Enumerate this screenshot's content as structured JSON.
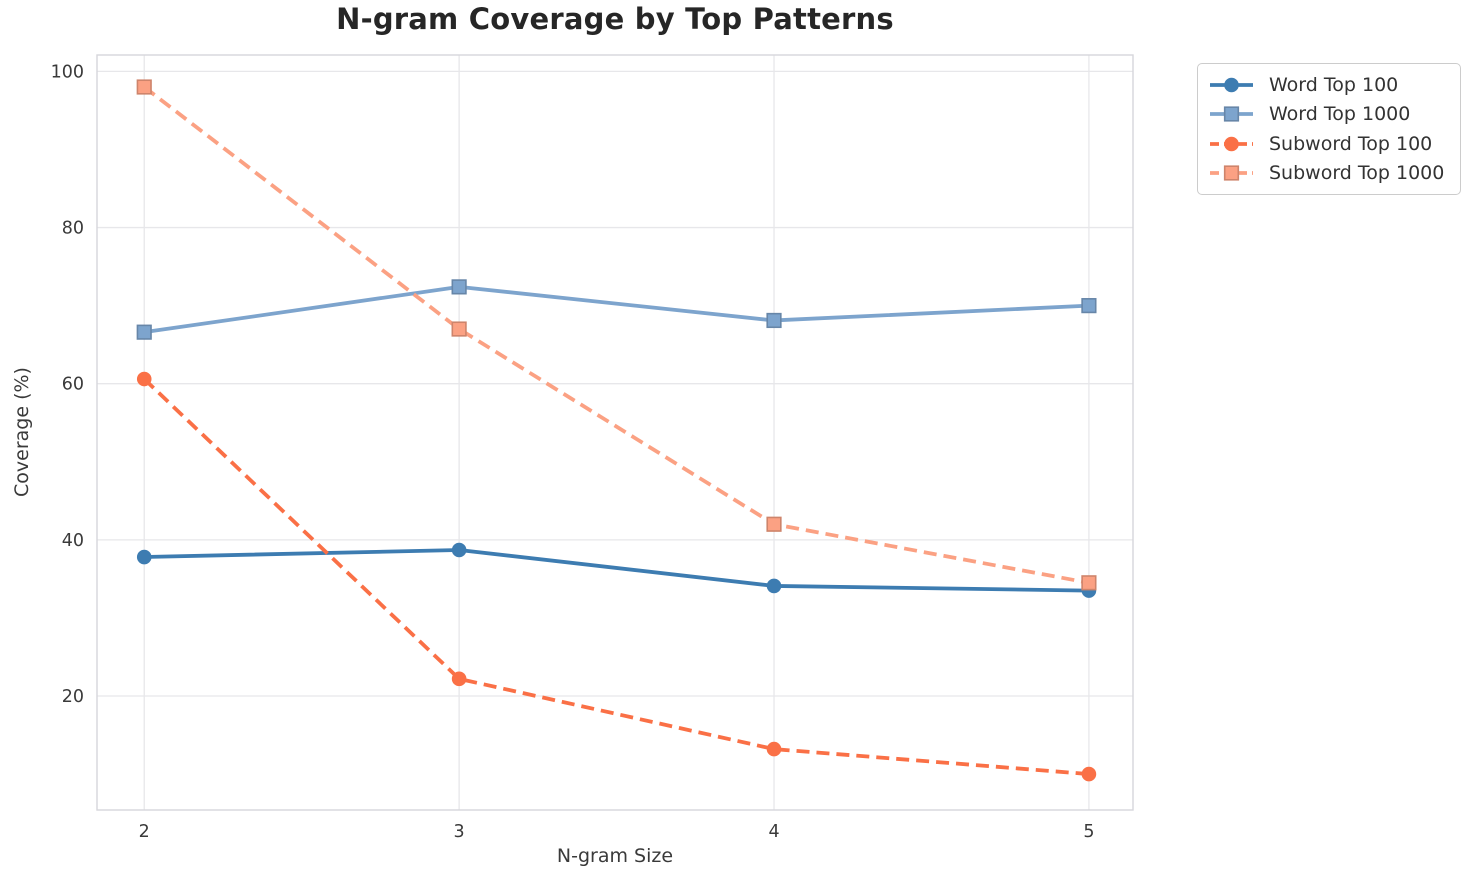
{
  "title": "N-gram Coverage by Top Patterns",
  "chart_data": {
    "type": "line",
    "title": "N-gram Coverage by Top Patterns",
    "xlabel": "N-gram Size",
    "ylabel": "Coverage (%)",
    "x": [
      2,
      3,
      4,
      5
    ],
    "xticks": [
      2,
      3,
      4,
      5
    ],
    "yticks": [
      20,
      40,
      60,
      80,
      100
    ],
    "xlim": [
      1.85,
      5.14
    ],
    "ylim": [
      5.4,
      102.1
    ],
    "grid": true,
    "legend_position": "outside-top-right",
    "series": [
      {
        "name": "Word Top 100",
        "color": "#3d7cb1",
        "marker": "circle",
        "line_style": "solid",
        "values": [
          37.8,
          38.7,
          34.1,
          33.5
        ]
      },
      {
        "name": "Word Top 1000",
        "color": "#7da4cd",
        "marker": "square",
        "line_style": "solid",
        "values": [
          66.6,
          72.4,
          68.1,
          70.0
        ]
      },
      {
        "name": "Subword Top 100",
        "color": "#fa7046",
        "marker": "circle",
        "line_style": "dashed",
        "values": [
          60.6,
          22.2,
          13.2,
          10.0
        ]
      },
      {
        "name": "Subword Top 1000",
        "color": "#fba183",
        "marker": "square",
        "line_style": "dashed",
        "values": [
          98.0,
          67.0,
          42.0,
          34.5
        ]
      }
    ],
    "colors": {
      "grid": "#e7e7ea",
      "spine": "#d6d6db",
      "tick_label": "#3a3a3a",
      "title_text": "#262626",
      "legend_border": "#cccccc"
    }
  }
}
